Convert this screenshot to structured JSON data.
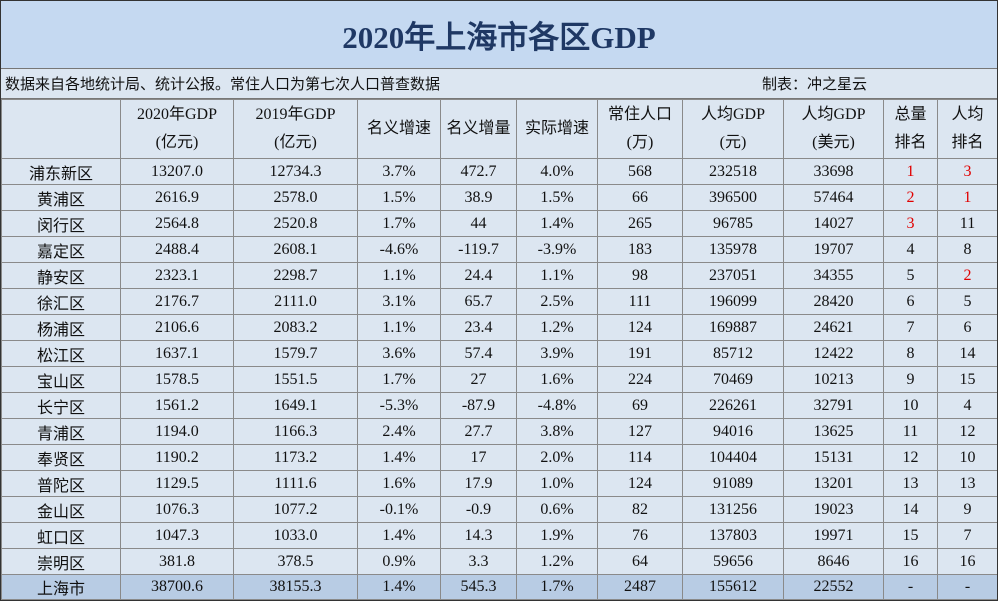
{
  "title": "2020年上海市各区GDP",
  "note": {
    "source": "数据来自各地统计局、统计公报。常住人口为第七次人口普查数据",
    "author": "制表：冲之星云"
  },
  "table": {
    "headers": [
      [
        "2020年GDP",
        "(亿元)"
      ],
      [
        "2019年GDP",
        "(亿元)"
      ],
      [
        "名义增速"
      ],
      [
        "名义增量"
      ],
      [
        "实际增速"
      ],
      [
        "常住人口",
        "(万)"
      ],
      [
        "人均GDP",
        "(元)"
      ],
      [
        "人均GDP",
        "(美元)"
      ],
      [
        "总量",
        "排名"
      ],
      [
        "人均",
        "排名"
      ]
    ],
    "rows": [
      [
        "浦东新区",
        "13207.0",
        "12734.3",
        "3.7%",
        "472.7",
        "4.0%",
        "568",
        "232518",
        "33698",
        "1",
        "3"
      ],
      [
        "黄浦区",
        "2616.9",
        "2578.0",
        "1.5%",
        "38.9",
        "1.5%",
        "66",
        "396500",
        "57464",
        "2",
        "1"
      ],
      [
        "闵行区",
        "2564.8",
        "2520.8",
        "1.7%",
        "44",
        "1.4%",
        "265",
        "96785",
        "14027",
        "3",
        "11"
      ],
      [
        "嘉定区",
        "2488.4",
        "2608.1",
        "-4.6%",
        "-119.7",
        "-3.9%",
        "183",
        "135978",
        "19707",
        "4",
        "8"
      ],
      [
        "静安区",
        "2323.1",
        "2298.7",
        "1.1%",
        "24.4",
        "1.1%",
        "98",
        "237051",
        "34355",
        "5",
        "2"
      ],
      [
        "徐汇区",
        "2176.7",
        "2111.0",
        "3.1%",
        "65.7",
        "2.5%",
        "111",
        "196099",
        "28420",
        "6",
        "5"
      ],
      [
        "杨浦区",
        "2106.6",
        "2083.2",
        "1.1%",
        "23.4",
        "1.2%",
        "124",
        "169887",
        "24621",
        "7",
        "6"
      ],
      [
        "松江区",
        "1637.1",
        "1579.7",
        "3.6%",
        "57.4",
        "3.9%",
        "191",
        "85712",
        "12422",
        "8",
        "14"
      ],
      [
        "宝山区",
        "1578.5",
        "1551.5",
        "1.7%",
        "27",
        "1.6%",
        "224",
        "70469",
        "10213",
        "9",
        "15"
      ],
      [
        "长宁区",
        "1561.2",
        "1649.1",
        "-5.3%",
        "-87.9",
        "-4.8%",
        "69",
        "226261",
        "32791",
        "10",
        "4"
      ],
      [
        "青浦区",
        "1194.0",
        "1166.3",
        "2.4%",
        "27.7",
        "3.8%",
        "127",
        "94016",
        "13625",
        "11",
        "12"
      ],
      [
        "奉贤区",
        "1190.2",
        "1173.2",
        "1.4%",
        "17",
        "2.0%",
        "114",
        "104404",
        "15131",
        "12",
        "10"
      ],
      [
        "普陀区",
        "1129.5",
        "1111.6",
        "1.6%",
        "17.9",
        "1.0%",
        "124",
        "91089",
        "13201",
        "13",
        "13"
      ],
      [
        "金山区",
        "1076.3",
        "1077.2",
        "-0.1%",
        "-0.9",
        "0.6%",
        "82",
        "131256",
        "19023",
        "14",
        "9"
      ],
      [
        "虹口区",
        "1047.3",
        "1033.0",
        "1.4%",
        "14.3",
        "1.9%",
        "76",
        "137803",
        "19971",
        "15",
        "7"
      ],
      [
        "崇明区",
        "381.8",
        "378.5",
        "0.9%",
        "3.3",
        "1.2%",
        "64",
        "59656",
        "8646",
        "16",
        "16"
      ]
    ],
    "total": [
      "上海市",
      "38700.6",
      "38155.3",
      "1.4%",
      "545.3",
      "1.7%",
      "2487",
      "155612",
      "22552",
      "-",
      "-"
    ]
  }
}
